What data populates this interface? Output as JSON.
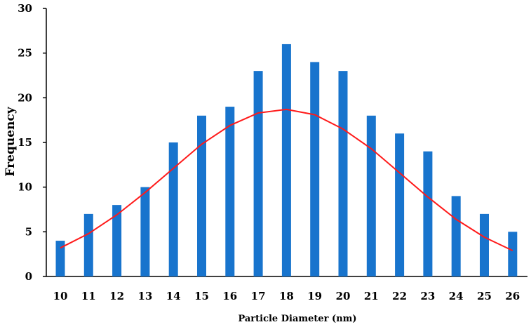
{
  "chart_data": {
    "type": "bar",
    "xlabel": "Particle Diameter (nm)",
    "ylabel": "Frequency",
    "ylim": [
      0,
      30
    ],
    "yticks": [
      0,
      5,
      10,
      15,
      20,
      25,
      30
    ],
    "categories": [
      "10",
      "11",
      "12",
      "13",
      "14",
      "15",
      "16",
      "17",
      "18",
      "19",
      "20",
      "21",
      "22",
      "23",
      "24",
      "25",
      "26"
    ],
    "values": [
      4,
      7,
      8,
      10,
      15,
      18,
      19,
      23,
      26,
      24,
      23,
      18,
      16,
      14,
      9,
      7,
      5
    ],
    "fit_curve": {
      "type": "line",
      "x": [
        10,
        11,
        12,
        13,
        14,
        15,
        16,
        17,
        18,
        19,
        20,
        21,
        22,
        23,
        24,
        25,
        26
      ],
      "y": [
        3.2,
        4.8,
        6.9,
        9.4,
        12.1,
        14.8,
        16.9,
        18.3,
        18.7,
        18.1,
        16.5,
        14.3,
        11.6,
        8.9,
        6.4,
        4.4,
        2.9
      ]
    },
    "grid": false,
    "legend": "none",
    "colors": {
      "bar": "#1874CD",
      "curve": "#FF1A1A",
      "axis": "#000000"
    }
  }
}
